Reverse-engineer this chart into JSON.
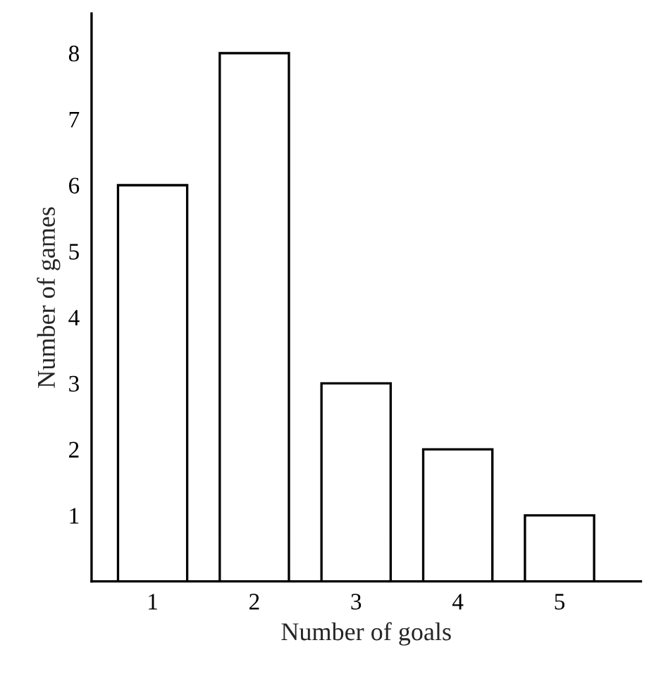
{
  "chart_data": {
    "type": "bar",
    "xlabel": "Number of goals",
    "ylabel": "Number of games",
    "categories": [
      "1",
      "2",
      "3",
      "4",
      "5"
    ],
    "values": [
      6,
      8,
      3,
      2,
      1
    ],
    "color": "#ffffff",
    "ylim": [
      0,
      8.6
    ],
    "yticks": [
      1,
      2,
      3,
      4,
      5,
      6,
      7,
      8
    ],
    "grid": false,
    "legend": false
  }
}
